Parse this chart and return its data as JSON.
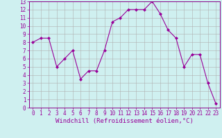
{
  "x": [
    0,
    1,
    2,
    3,
    4,
    5,
    6,
    7,
    8,
    9,
    10,
    11,
    12,
    13,
    14,
    15,
    16,
    17,
    18,
    19,
    20,
    21,
    22,
    23
  ],
  "y": [
    8.0,
    8.5,
    8.5,
    5.0,
    6.0,
    7.0,
    3.5,
    4.5,
    4.5,
    7.0,
    10.5,
    11.0,
    12.0,
    12.0,
    12.0,
    13.0,
    11.5,
    9.5,
    8.5,
    5.0,
    6.5,
    6.5,
    3.0,
    0.5
  ],
  "line_color": "#990099",
  "marker": "D",
  "marker_size": 2,
  "bg_color": "#cff0f0",
  "grid_color": "#b0b0b0",
  "xlabel": "Windchill (Refroidissement éolien,°C)",
  "ylim": [
    0,
    13
  ],
  "xlim": [
    0,
    23
  ],
  "yticks": [
    0,
    1,
    2,
    3,
    4,
    5,
    6,
    7,
    8,
    9,
    10,
    11,
    12,
    13
  ],
  "xticks": [
    0,
    1,
    2,
    3,
    4,
    5,
    6,
    7,
    8,
    9,
    10,
    11,
    12,
    13,
    14,
    15,
    16,
    17,
    18,
    19,
    20,
    21,
    22,
    23
  ],
  "tick_fontsize": 5.5,
  "xlabel_fontsize": 6.5,
  "line_color_hex": "#880088",
  "spine_color": "#880088"
}
